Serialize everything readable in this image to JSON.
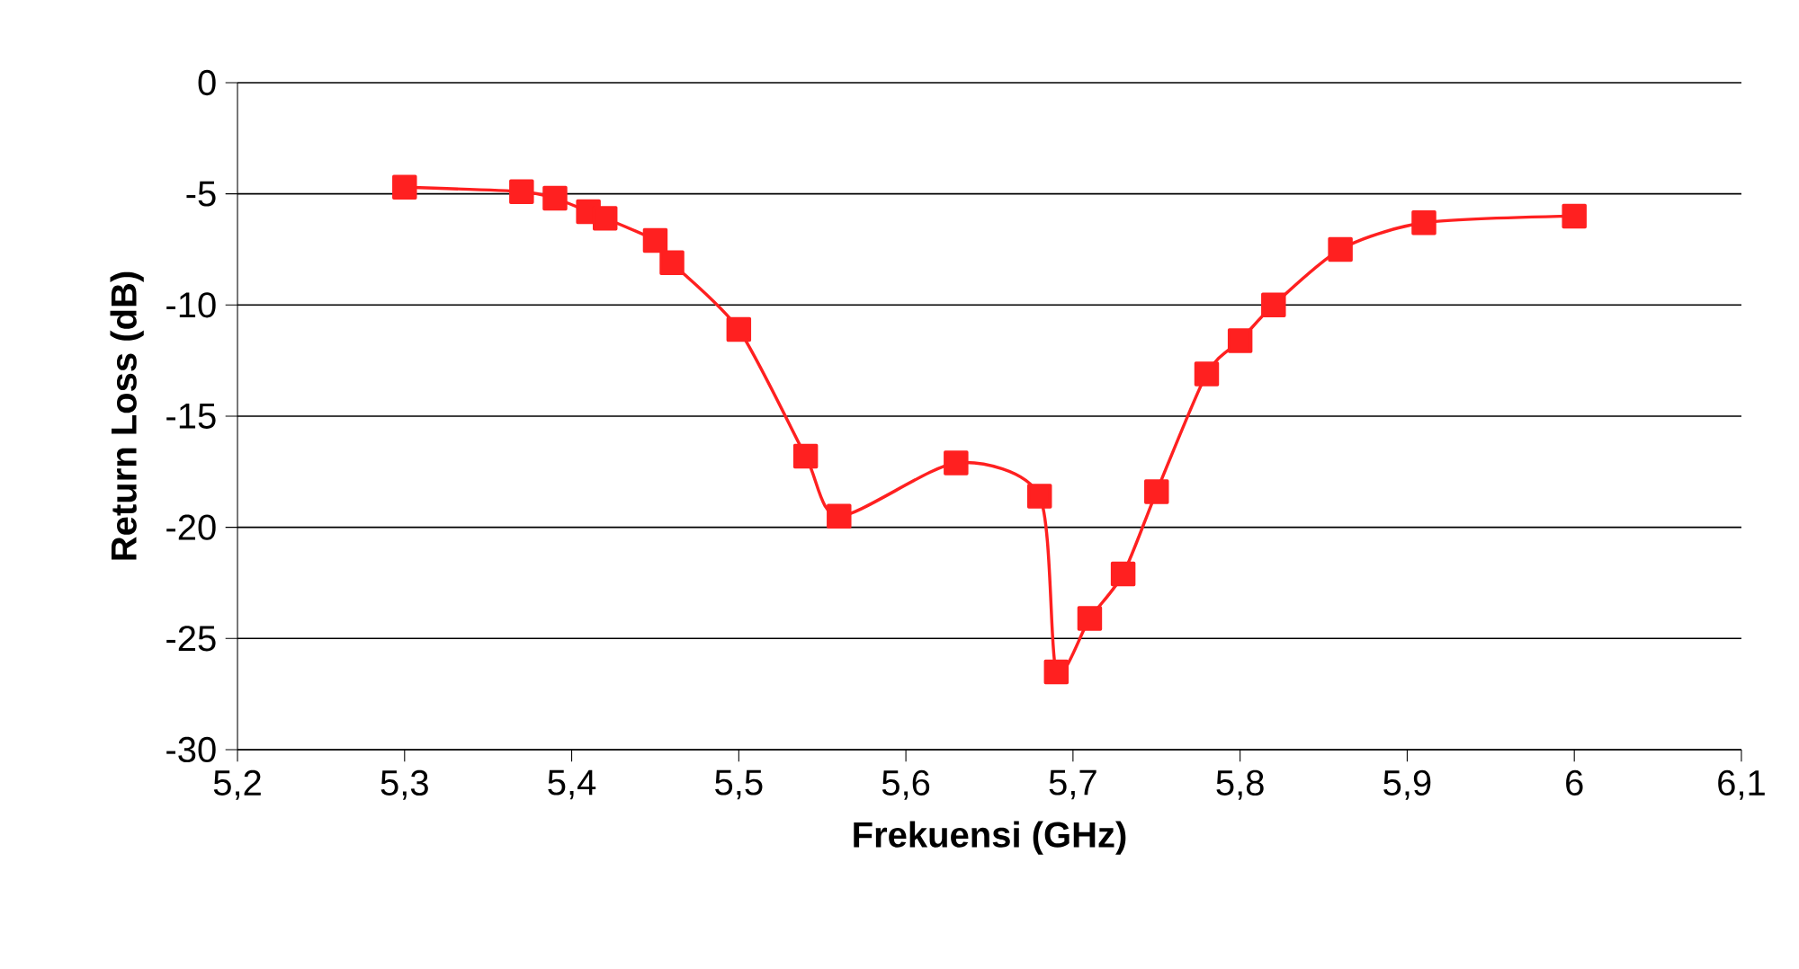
{
  "chart_data": {
    "type": "line",
    "xlabel": "Frekuensi (GHz)",
    "ylabel": "Return Loss (dB)",
    "x": [
      5.3,
      5.37,
      5.39,
      5.41,
      5.42,
      5.45,
      5.46,
      5.5,
      5.54,
      5.56,
      5.63,
      5.68,
      5.69,
      5.71,
      5.73,
      5.75,
      5.78,
      5.8,
      5.82,
      5.86,
      5.91,
      6.0
    ],
    "series": [
      {
        "color": "#ff2020",
        "values": [
          -4.7,
          -4.9,
          -5.2,
          -5.8,
          -6.1,
          -7.1,
          -8.1,
          -11.1,
          -16.8,
          -19.5,
          -17.1,
          -18.6,
          -26.5,
          -24.1,
          -22.1,
          -18.4,
          -13.1,
          -11.6,
          -10.0,
          -7.5,
          -6.3,
          -6.0
        ]
      }
    ],
    "xlim": [
      5.2,
      6.1
    ],
    "xticks": [
      {
        "value": 5.2,
        "label": "5,2"
      },
      {
        "value": 5.3,
        "label": "5,3"
      },
      {
        "value": 5.4,
        "label": "5,4"
      },
      {
        "value": 5.5,
        "label": "5,5"
      },
      {
        "value": 5.6,
        "label": "5,6"
      },
      {
        "value": 5.7,
        "label": "5,7"
      },
      {
        "value": 5.8,
        "label": "5,8"
      },
      {
        "value": 5.9,
        "label": "5,9"
      },
      {
        "value": 6,
        "label": "6"
      },
      {
        "value": 6.1,
        "label": "6,1"
      }
    ],
    "ylim": [
      -30,
      0
    ],
    "yticks": [
      -30,
      -25,
      -20,
      -15,
      -10,
      -5,
      0
    ],
    "grid": "y",
    "marker": "square",
    "line_style": "solid"
  }
}
